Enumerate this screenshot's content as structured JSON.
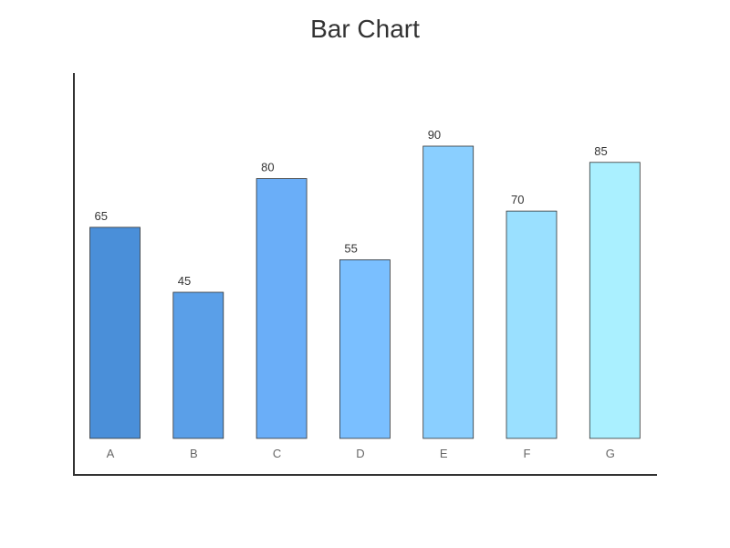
{
  "chart_data": {
    "type": "bar",
    "title": "Bar Chart",
    "xlabel": "",
    "ylabel": "",
    "categories": [
      "A",
      "B",
      "C",
      "D",
      "E",
      "F",
      "G"
    ],
    "values": [
      65,
      45,
      80,
      55,
      90,
      70,
      85
    ],
    "ylim": [
      0,
      90
    ],
    "grid": false,
    "show_value_labels": true,
    "show_y_ticks": false,
    "colors": [
      "#4a8fd9",
      "#5a9fe8",
      "#6aaef8",
      "#7abfff",
      "#8acfff",
      "#9ae0ff",
      "#aaf0ff"
    ],
    "bar_edge_color": "#333333",
    "axis_color": "#333333"
  }
}
